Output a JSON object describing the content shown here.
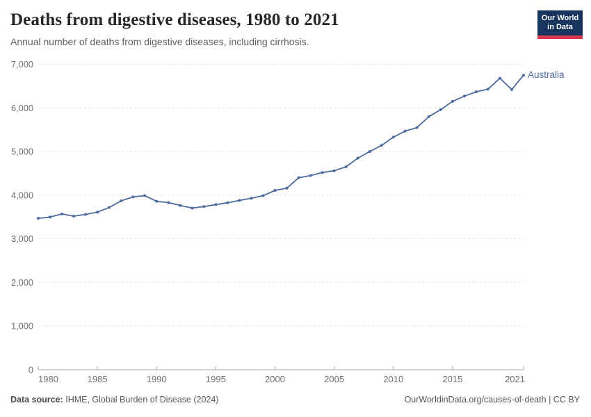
{
  "header": {
    "title": "Deaths from digestive diseases, 1980 to 2021",
    "subtitle": "Annual number of deaths from digestive diseases, including cirrhosis.",
    "logo_line1": "Our World",
    "logo_line2": "in Data"
  },
  "chart_data": {
    "type": "line",
    "title": "Deaths from digestive diseases, 1980 to 2021",
    "xlabel": "",
    "ylabel": "",
    "xlim": [
      1980,
      2021
    ],
    "ylim": [
      0,
      7000
    ],
    "xticks": [
      1980,
      1985,
      1990,
      1995,
      2000,
      2005,
      2010,
      2015,
      2021
    ],
    "yticks": [
      0,
      1000,
      2000,
      3000,
      4000,
      5000,
      6000,
      7000
    ],
    "grid": "horizontal-dashed",
    "legend_position": "line-end-label",
    "series": [
      {
        "name": "Australia",
        "color": "#4C6A9C",
        "x": [
          1980,
          1981,
          1982,
          1983,
          1984,
          1985,
          1986,
          1987,
          1988,
          1989,
          1990,
          1991,
          1992,
          1993,
          1994,
          1995,
          1996,
          1997,
          1998,
          1999,
          2000,
          2001,
          2002,
          2003,
          2004,
          2005,
          2006,
          2007,
          2008,
          2009,
          2010,
          2011,
          2012,
          2013,
          2014,
          2015,
          2016,
          2017,
          2018,
          2019,
          2020,
          2021
        ],
        "values": [
          3470,
          3500,
          3570,
          3520,
          3560,
          3610,
          3720,
          3870,
          3960,
          3990,
          3860,
          3830,
          3765,
          3705,
          3740,
          3785,
          3825,
          3880,
          3930,
          3990,
          4110,
          4160,
          4400,
          4450,
          4520,
          4560,
          4650,
          4850,
          5000,
          5140,
          5330,
          5470,
          5550,
          5800,
          5960,
          6150,
          6270,
          6370,
          6430,
          6680,
          6420,
          6750
        ]
      }
    ]
  },
  "footer": {
    "data_source_label": "Data source:",
    "data_source_value": "IHME, Global Burden of Disease (2024)",
    "credit": "OurWorldinData.org/causes-of-death | CC BY"
  },
  "colors": {
    "series_line": "#4C6A9C",
    "gridline": "#e0e0e0",
    "axis_line": "#a8a8a8",
    "tick_label": "#6e6e6e",
    "logo_navy": "#18365d",
    "logo_red": "#d7364d"
  }
}
